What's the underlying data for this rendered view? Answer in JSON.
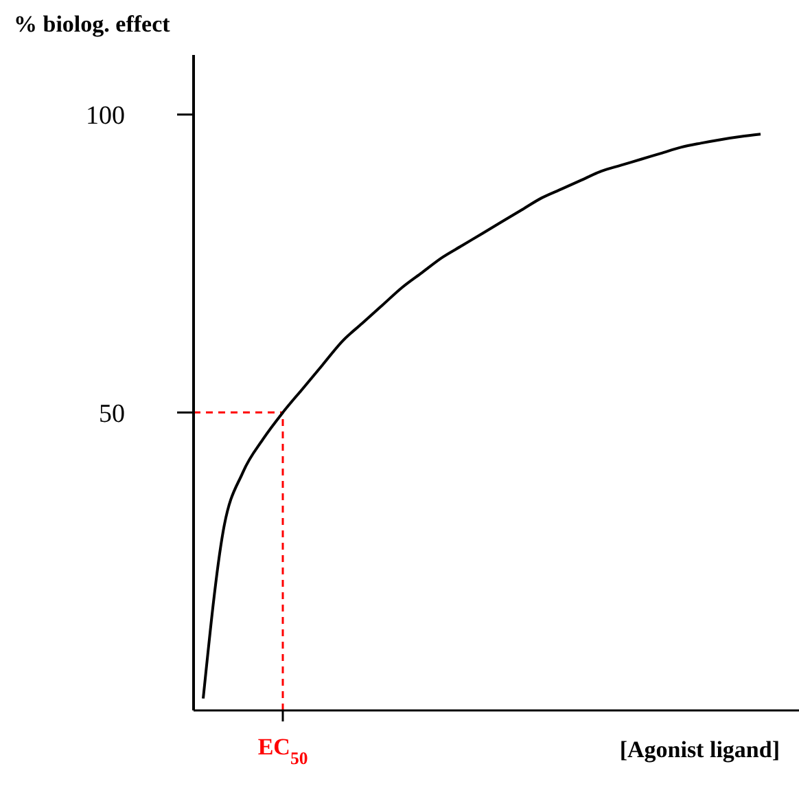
{
  "chart_data": {
    "type": "line",
    "ylabel": "% biolog. effect",
    "xlabel": "[Agonist ligand]",
    "categories": [
      null,
      null,
      null,
      null,
      "EC$_{50}$",
      null,
      null,
      null,
      null,
      null,
      null,
      null,
      null,
      null,
      null,
      null,
      null,
      null,
      null,
      null,
      null,
      null,
      null,
      null,
      null,
      null,
      null,
      null,
      null
    ],
    "series": [
      {
        "color": "#000000",
        "values": [
          2,
          30,
          40,
          45.5,
          50,
          54,
          58,
          62,
          65,
          68,
          71,
          73.5,
          76,
          78,
          80,
          82,
          84,
          86,
          87.5,
          89,
          90.5,
          91.5,
          92.5,
          93.5,
          94.5,
          95.2,
          95.8,
          96.3,
          96.7
        ]
      }
    ],
    "ylim": [
      0,
      110
    ],
    "yticks": [
      50,
      100
    ],
    "grid": false,
    "legend": false,
    "marker": "none",
    "line_style": "solid",
    "ref_lines": [
      {
        "axis": "y",
        "value": 50,
        "color": "#ff0000",
        "line_style": "dashed"
      },
      {
        "axis": "x",
        "value": "EC$_{50}$",
        "color": "#ff0000",
        "line_style": "dashed"
      }
    ]
  }
}
